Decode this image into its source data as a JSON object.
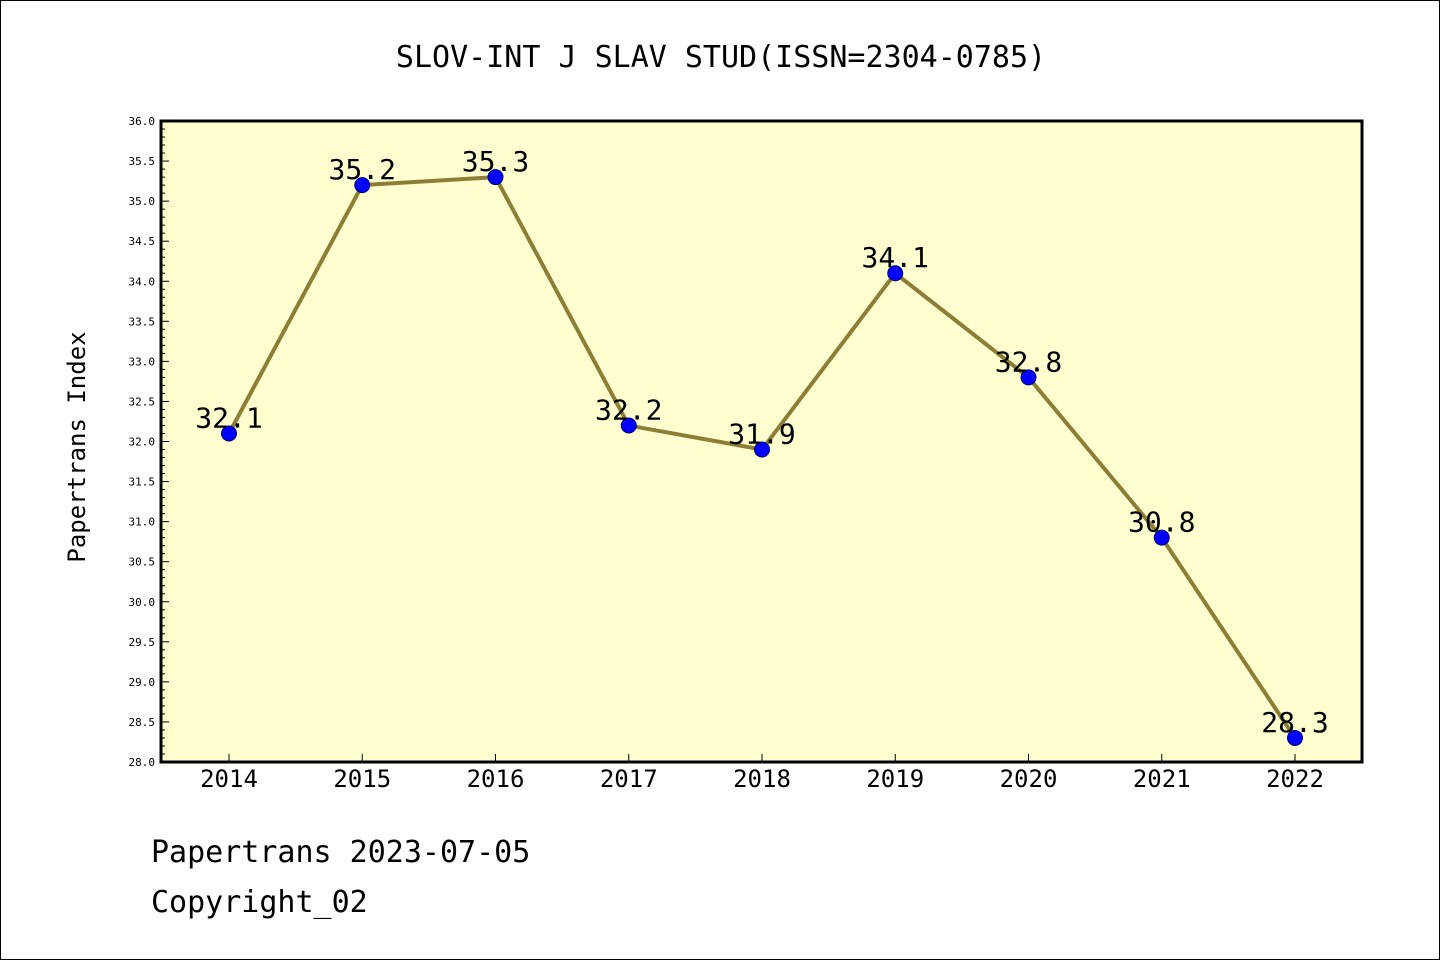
{
  "chart_data": {
    "type": "line",
    "title": "SLOV-INT J SLAV STUD(ISSN=2304-0785)",
    "xlabel": "",
    "ylabel": "Papertrans Index",
    "categories": [
      "2014",
      "2015",
      "2016",
      "2017",
      "2018",
      "2019",
      "2020",
      "2021",
      "2022"
    ],
    "series": [
      {
        "values": [
          32.1,
          35.2,
          35.3,
          32.2,
          31.9,
          34.1,
          32.8,
          30.8,
          28.3
        ]
      }
    ],
    "data_labels": [
      "32.1",
      "35.2",
      "35.3",
      "32.2",
      "31.9",
      "34.1",
      "32.8",
      "30.8",
      "28.3"
    ],
    "ylim": [
      28.0,
      36.0
    ],
    "y_ticks": [
      "28.0",
      "28.5",
      "29.0",
      "29.5",
      "30.0",
      "30.5",
      "31.0",
      "31.5",
      "32.0",
      "32.5",
      "33.0",
      "33.5",
      "34.0",
      "34.5",
      "35.0",
      "35.5",
      "36.0"
    ],
    "grid": false,
    "legend": "none",
    "colors": {
      "plot_background": "#ffffd0",
      "line": "#8c7e35",
      "marker": "#0000ff"
    }
  },
  "footer": {
    "date_line": "Papertrans 2023-07-05",
    "copyright": "Copyright_02"
  }
}
